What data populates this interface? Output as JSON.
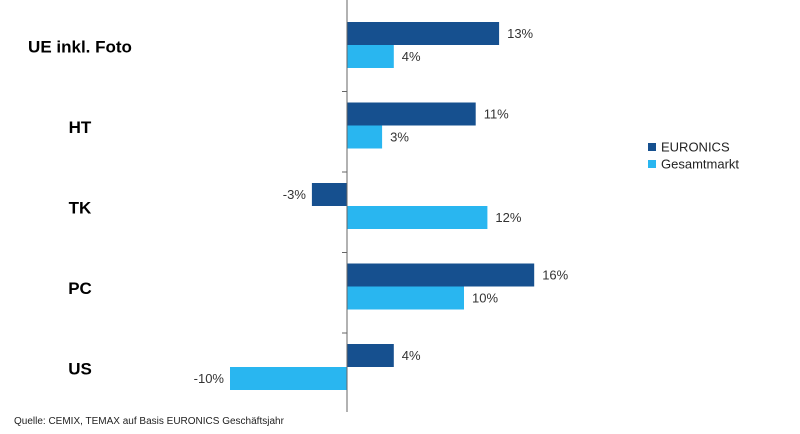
{
  "chart_data": {
    "type": "bar",
    "orientation": "horizontal",
    "categories": [
      "UE inkl. Foto",
      "HT",
      "TK",
      "PC",
      "US"
    ],
    "series": [
      {
        "name": "EURONICS",
        "color": "#16508f",
        "values": [
          13,
          11,
          -3,
          16,
          4
        ]
      },
      {
        "name": "Gesamtmarkt",
        "color": "#29b6f0",
        "values": [
          4,
          3,
          12,
          10,
          -10
        ]
      }
    ],
    "value_labels": {
      "EURONICS": [
        "13%",
        "11%",
        "-3%",
        "16%",
        "4%"
      ],
      "Gesamtmarkt": [
        "4%",
        "3%",
        "12%",
        "10%",
        "-10%"
      ]
    },
    "xlim": [
      -10,
      16
    ],
    "legend": "right",
    "grid": false
  },
  "source_note": "Quelle: CEMIX, TEMAX auf Basis EURONICS Geschäftsjahr"
}
